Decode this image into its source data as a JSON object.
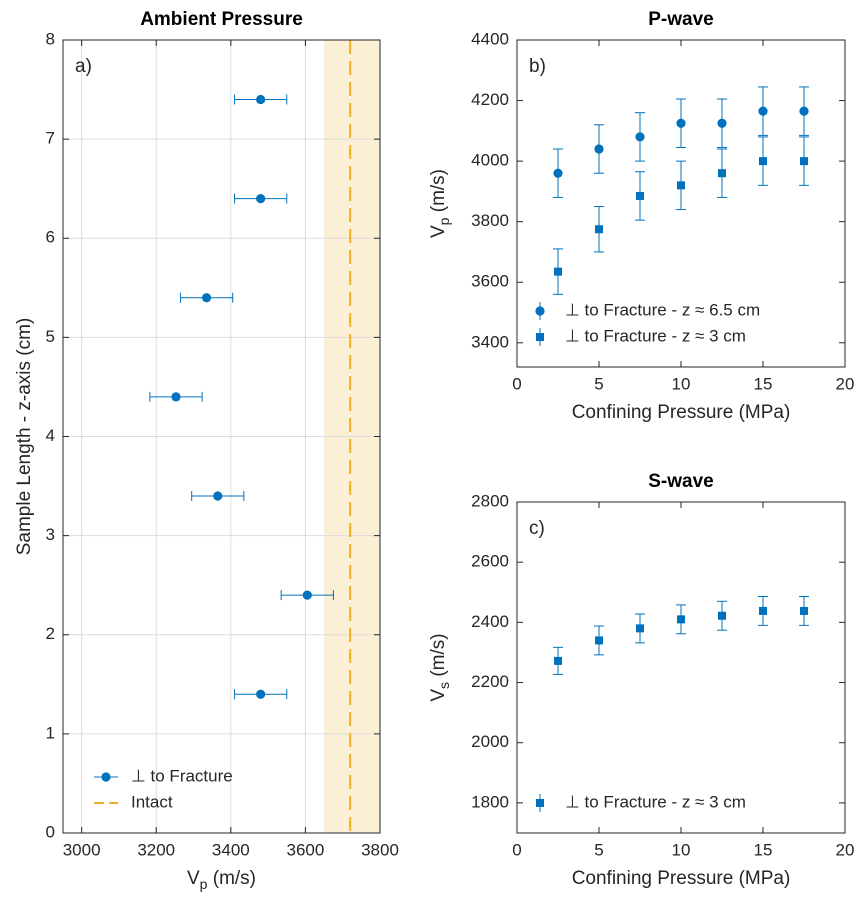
{
  "chart_data": [
    {
      "type": "scatter",
      "title": "Ambient Pressure",
      "panel_label": "a)",
      "xlabel": [
        "V",
        "p",
        " (m/s)"
      ],
      "ylabel": [
        "Sample Length - z-axis (cm)"
      ],
      "xlim": [
        2950,
        3800
      ],
      "ylim": [
        0,
        8
      ],
      "xticks": [
        3000,
        3200,
        3400,
        3600,
        3800
      ],
      "yticks": [
        0,
        1,
        2,
        3,
        4,
        5,
        6,
        7,
        8
      ],
      "grid": true,
      "legend": "lower-left",
      "shaded_range": [
        3650,
        3800
      ],
      "shade_color": "#fbefd6",
      "reference_lines": [
        {
          "name": "Intact",
          "x": 3720,
          "color": "#edb120",
          "dash": true
        }
      ],
      "series": [
        {
          "name": "⊥ to Fracture",
          "color": "#0072bd",
          "marker": "circle",
          "x": [
            3480,
            3480,
            3335,
            3253,
            3365,
            3605,
            3480
          ],
          "y": [
            7.4,
            6.4,
            5.4,
            4.4,
            3.4,
            2.4,
            1.4
          ],
          "xerr": [
            70,
            70,
            70,
            70,
            70,
            70,
            70
          ]
        }
      ]
    },
    {
      "type": "scatter",
      "title": "P-wave",
      "panel_label": "b)",
      "xlabel": [
        "Confining Pressure (MPa)"
      ],
      "ylabel": [
        "V",
        "p",
        " (m/s)"
      ],
      "xlim": [
        0,
        20
      ],
      "ylim": [
        3320,
        4400
      ],
      "xticks": [
        0,
        5,
        10,
        15,
        20
      ],
      "yticks": [
        3400,
        3600,
        3800,
        4000,
        4200,
        4400
      ],
      "grid": false,
      "legend": "lower-left",
      "series": [
        {
          "name": "⊥ to Fracture - z ≈ 6.5 cm",
          "color": "#0072bd",
          "marker": "circle",
          "x": [
            2.5,
            5,
            7.5,
            10,
            12.5,
            15,
            17.5
          ],
          "y": [
            3960,
            4040,
            4080,
            4125,
            4125,
            4165,
            4165
          ],
          "yerr": [
            80,
            80,
            80,
            80,
            80,
            80,
            80
          ]
        },
        {
          "name": "⊥ to Fracture - z ≈ 3 cm",
          "color": "#0072bd",
          "marker": "square",
          "x": [
            2.5,
            5,
            7.5,
            10,
            12.5,
            15,
            17.5
          ],
          "y": [
            3635,
            3775,
            3885,
            3920,
            3960,
            4000,
            4000
          ],
          "yerr": [
            75,
            75,
            80,
            80,
            80,
            80,
            80
          ]
        }
      ]
    },
    {
      "type": "scatter",
      "title": "S-wave",
      "panel_label": "c)",
      "xlabel": [
        "Confining Pressure (MPa)"
      ],
      "ylabel": [
        "V",
        "s",
        " (m/s)"
      ],
      "xlim": [
        0,
        20
      ],
      "ylim": [
        1700,
        2800
      ],
      "xticks": [
        0,
        5,
        10,
        15,
        20
      ],
      "yticks": [
        1800,
        2000,
        2200,
        2400,
        2600,
        2800
      ],
      "grid": false,
      "legend": "lower-left",
      "series": [
        {
          "name": "⊥ to Fracture - z ≈ 3 cm",
          "color": "#0072bd",
          "marker": "square",
          "x": [
            2.5,
            5,
            7.5,
            10,
            12.5,
            15,
            17.5
          ],
          "y": [
            2272,
            2340,
            2380,
            2410,
            2422,
            2438,
            2438
          ],
          "yerr": [
            45,
            48,
            48,
            48,
            48,
            48,
            48
          ]
        }
      ]
    }
  ]
}
